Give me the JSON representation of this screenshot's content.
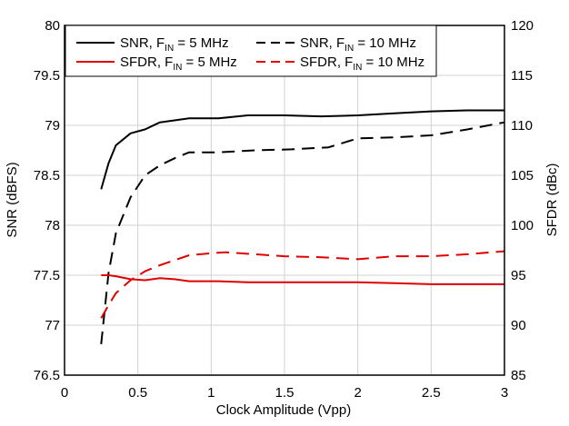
{
  "chart_data": {
    "type": "line",
    "xlabel": "Clock Amplitude (Vpp)",
    "ylabel_left": "SNR (dBFS)",
    "ylabel_right": "SFDR (dBc)",
    "xlim": [
      0,
      3
    ],
    "ylim_left": [
      76.5,
      80
    ],
    "ylim_right": [
      85,
      120
    ],
    "x_ticks": [
      "0",
      "0.5",
      "1",
      "1.5",
      "2",
      "2.5",
      "3"
    ],
    "y_left_ticks": [
      "76.5",
      "77",
      "77.5",
      "78",
      "78.5",
      "79",
      "79.5",
      "80"
    ],
    "y_right_ticks": [
      "85",
      "90",
      "95",
      "100",
      "105",
      "110",
      "115",
      "120"
    ],
    "grid": true,
    "legend_position": "top",
    "series": [
      {
        "name": "SNR, F",
        "name_sub": "IN",
        "name_rest": " = 5 MHz",
        "axis": "left",
        "color": "#000000",
        "dash": "solid",
        "x": [
          0.25,
          0.3,
          0.35,
          0.45,
          0.55,
          0.65,
          0.85,
          1.05,
          1.25,
          1.5,
          1.75,
          2.0,
          2.25,
          2.5,
          2.75,
          3.0
        ],
        "y": [
          78.36,
          78.62,
          78.8,
          78.92,
          78.96,
          79.03,
          79.07,
          79.07,
          79.1,
          79.1,
          79.09,
          79.1,
          79.12,
          79.14,
          79.15,
          79.15
        ]
      },
      {
        "name": "SNR, F",
        "name_sub": "IN",
        "name_rest": " = 10 MHz",
        "axis": "left",
        "color": "#000000",
        "dash": "dashed",
        "x": [
          0.25,
          0.3,
          0.35,
          0.45,
          0.55,
          0.65,
          0.75,
          0.85,
          1.05,
          1.3,
          1.55,
          1.8,
          2.0,
          2.25,
          2.5,
          2.75,
          3.0
        ],
        "y": [
          76.81,
          77.52,
          77.92,
          78.28,
          78.5,
          78.6,
          78.67,
          78.73,
          78.73,
          78.75,
          78.76,
          78.78,
          78.87,
          78.88,
          78.9,
          78.96,
          79.03
        ]
      },
      {
        "name": "SFDR, F",
        "name_sub": "IN",
        "name_rest": " = 5 MHz",
        "axis": "right",
        "color": "#e00000",
        "dash": "solid",
        "x": [
          0.25,
          0.3,
          0.35,
          0.45,
          0.55,
          0.65,
          0.75,
          0.85,
          1.05,
          1.25,
          1.5,
          1.75,
          2.0,
          2.25,
          2.5,
          2.75,
          3.0
        ],
        "y": [
          95.0,
          95.0,
          94.9,
          94.6,
          94.5,
          94.7,
          94.6,
          94.4,
          94.4,
          94.3,
          94.3,
          94.3,
          94.3,
          94.2,
          94.1,
          94.1,
          94.1
        ]
      },
      {
        "name": "SFDR, F",
        "name_sub": "IN",
        "name_rest": " = 10 MHz",
        "axis": "right",
        "color": "#e00000",
        "dash": "dashed",
        "x": [
          0.25,
          0.3,
          0.35,
          0.45,
          0.55,
          0.65,
          0.75,
          0.85,
          1.0,
          1.1,
          1.3,
          1.5,
          1.75,
          2.0,
          2.25,
          2.5,
          2.75,
          3.0
        ],
        "y": [
          90.7,
          92.0,
          93.2,
          94.5,
          95.4,
          96.0,
          96.5,
          97.0,
          97.2,
          97.3,
          97.1,
          96.9,
          96.8,
          96.6,
          96.9,
          96.9,
          97.1,
          97.4
        ]
      }
    ]
  }
}
